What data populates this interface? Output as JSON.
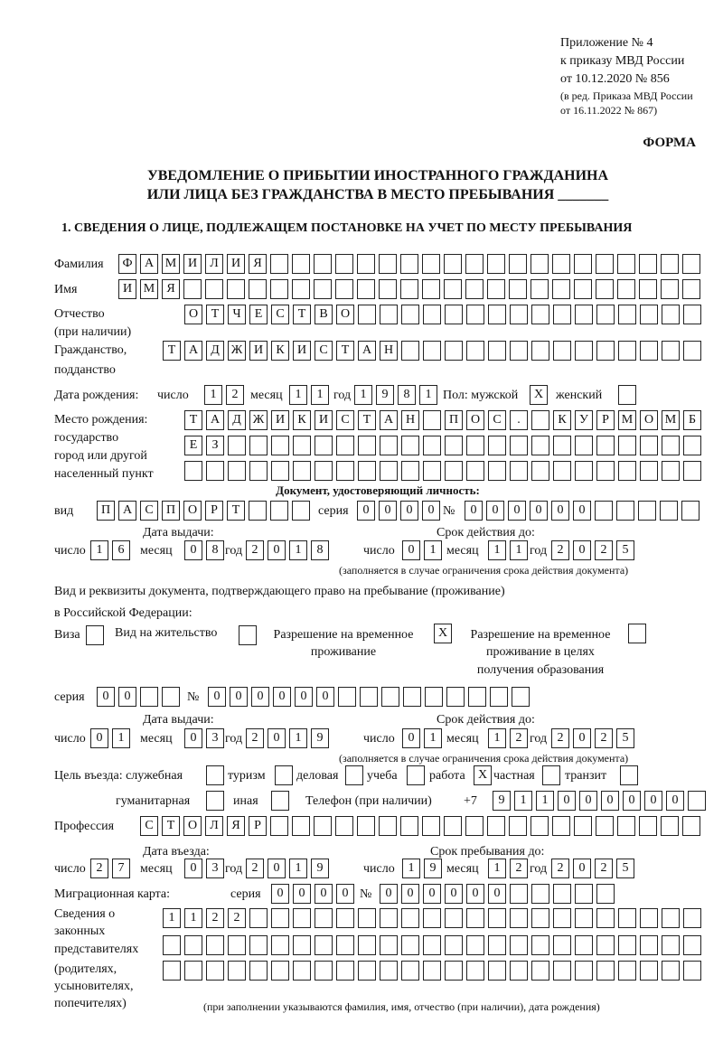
{
  "header": {
    "appendix": "Приложение № 4",
    "order": "к приказу МВД России",
    "order_date": "от 10.12.2020 № 856",
    "revision1": "(в ред. Приказа МВД России",
    "revision2": "от 16.11.2022 № 867)",
    "form_label": "ФОРМА",
    "title1": "УВЕДОМЛЕНИЕ О ПРИБЫТИИ ИНОСТРАННОГО ГРАЖДАНИНА",
    "title2": "ИЛИ ЛИЦА БЕЗ ГРАЖДАНСТВА В МЕСТО ПРЕБЫВАНИЯ _______",
    "section1": "1. СВЕДЕНИЯ О ЛИЦЕ, ПОДЛЕЖАЩЕМ ПОСТАНОВКЕ НА УЧЕТ ПО МЕСТУ ПРЕБЫВАНИЯ"
  },
  "person": {
    "surname_label": "Фамилия",
    "surname": "ФАМИЛИЯ",
    "name_label": "Имя",
    "name": "ИМЯ",
    "patronymic_label": "Отчество",
    "patronymic_label2": "(при наличии)",
    "patronymic": "ОТЧЕСТВО",
    "citizenship_label": "Гражданство,",
    "citizenship_label2": "подданство",
    "citizenship": "ТАДЖИКИСТАН",
    "birth_label": "Дата рождения:",
    "day_label": "число",
    "month_label": "месяц",
    "year_label": "год",
    "birth_day": "12",
    "birth_month": "11",
    "birth_year": "1981",
    "sex_label": "Пол: мужской",
    "female_label": "женский",
    "male_mark": "X",
    "female_mark": "",
    "birthplace_label1": "Место рождения:",
    "birthplace_label2": "государство",
    "birthplace_label3": "город или другой",
    "birthplace_label4": "населенный пункт",
    "birthplace_line1": "ТАДЖИКИСТАН ПОС. КУРМОМБ",
    "birthplace_line2": "ЕЗ",
    "birthplace_line3": ""
  },
  "identity_doc": {
    "heading": "Документ, удостоверяющий личность:",
    "type_label": "вид",
    "type": "ПАСПОРТ",
    "series_label": "серия",
    "series": "0000",
    "number_label": "№",
    "number": "000000",
    "issue_label": "Дата выдачи:",
    "valid_label": "Срок действия до:",
    "issue_day": "16",
    "issue_month": "08",
    "issue_year": "2018",
    "valid_day": "01",
    "valid_month": "11",
    "valid_year": "2025",
    "note": "(заполняется в случае ограничения срока действия документа)"
  },
  "stay_doc": {
    "heading1": "Вид и реквизиты документа, подтверждающего право на пребывание (проживание)",
    "heading2": "в Российской Федерации:",
    "visa_label": "Виза",
    "visa_mark": "",
    "residence_label": "Вид на жительство",
    "residence_mark": "",
    "trp_label1": "Разрешение на временное",
    "trp_label2": "проживание",
    "trp_mark": "X",
    "trp_edu_label1": "Разрешение на временное",
    "trp_edu_label2": "проживание в целях",
    "trp_edu_label3": "получения образования",
    "trp_edu_mark": "",
    "series_label": "серия",
    "series": "00",
    "number_label": "№",
    "number": "000000",
    "issue_label": "Дата выдачи:",
    "valid_label": "Срок действия до:",
    "issue_day": "01",
    "issue_month": "03",
    "issue_year": "2019",
    "valid_day": "01",
    "valid_month": "12",
    "valid_year": "2025",
    "note": "(заполняется в случае ограничения срока действия документа)"
  },
  "purpose": {
    "label": "Цель въезда: служебная",
    "service_mark": "",
    "tourism_label": "туризм",
    "tourism_mark": "",
    "business_label": "деловая",
    "business_mark": "",
    "study_label": "учеба",
    "study_mark": "",
    "work_label": "работа",
    "work_mark": "X",
    "private_label": "частная",
    "private_mark": "",
    "transit_label": "транзит",
    "transit_mark": "",
    "humanitarian_label": "гуманитарная",
    "humanitarian_mark": "",
    "other_label": "иная",
    "other_mark": "",
    "phone_label": "Телефон (при наличии)",
    "phone_prefix": "+7",
    "phone": "911000000"
  },
  "profession": {
    "label": "Профессия",
    "value": "СТОЛЯР"
  },
  "entry": {
    "entry_label": "Дата въезда:",
    "stay_until_label": "Срок пребывания до:",
    "entry_day": "27",
    "entry_month": "03",
    "entry_year": "2019",
    "until_day": "19",
    "until_month": "12",
    "until_year": "2025"
  },
  "migration_card": {
    "label": "Миграционная карта:",
    "series_label": "серия",
    "series": "0000",
    "number_label": "№",
    "number": "000000"
  },
  "representatives": {
    "label1": "Сведения о",
    "label2": "законных",
    "label3": "представителях",
    "label4": "(родителях,",
    "label5": "усыновителях,",
    "label6": "попечителях)",
    "line1": "1122",
    "line2": "",
    "line3": "",
    "note": "(при заполнении указываются фамилия, имя, отчество (при наличии), дата рождения)"
  }
}
